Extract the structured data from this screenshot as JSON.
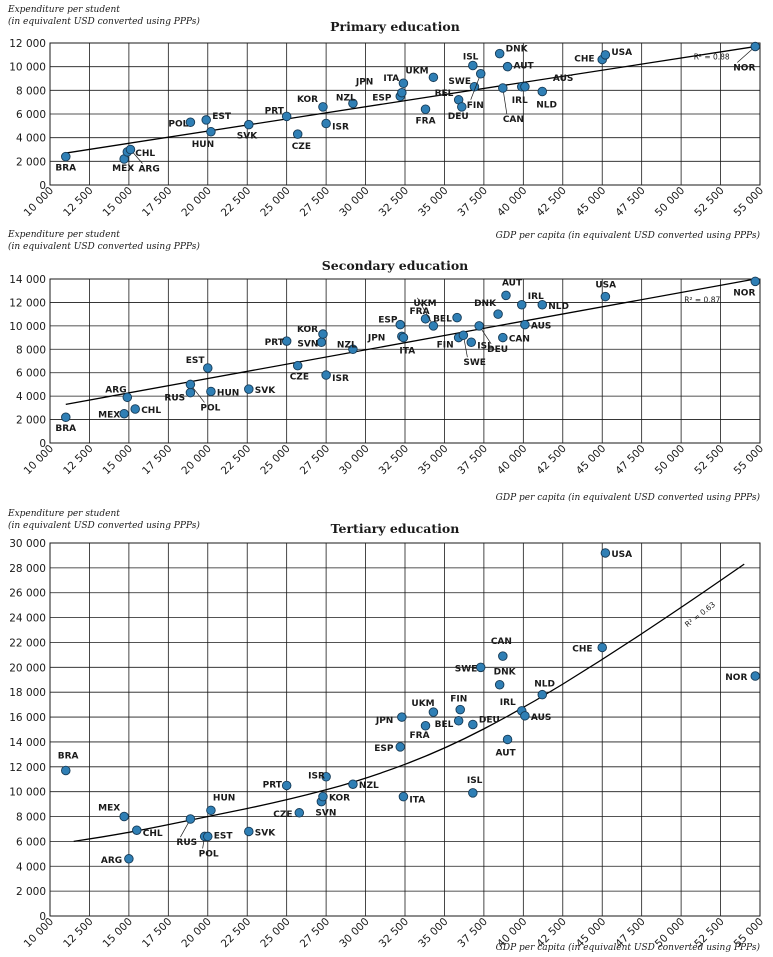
{
  "chart_data": [
    {
      "type": "scatter",
      "title": "Primary education",
      "ylabel_line1": "Expenditure per student",
      "ylabel_line2": "(in equivalent USD converted using PPPs)",
      "xlabel": "GDP per capita (in equivalent USD converted using PPPs)",
      "xlim": [
        10000,
        55000
      ],
      "ylim": [
        0,
        12000
      ],
      "x_ticks": [
        10000,
        12500,
        15000,
        17500,
        20000,
        22500,
        25000,
        27500,
        30000,
        32500,
        35000,
        37500,
        40000,
        42500,
        45000,
        47500,
        50000,
        52500,
        55000
      ],
      "x_tick_labels": [
        "10 000",
        "12 500",
        "15 000",
        "17 500",
        "20 000",
        "22 500",
        "25 000",
        "27 500",
        "30 000",
        "32 500",
        "35 000",
        "37 500",
        "40 000",
        "42 500",
        "45 000",
        "47 500",
        "50 000",
        "52 500",
        "55 000"
      ],
      "y_ticks": [
        0,
        2000,
        4000,
        6000,
        8000,
        10000,
        12000
      ],
      "y_tick_labels": [
        "0",
        "2 000",
        "4 000",
        "6 000",
        "8 000",
        "10 000",
        "12 000"
      ],
      "grid": true,
      "r2_label": "R² = 0.88",
      "trend": {
        "kind": "linear",
        "x": [
          11000,
          54700
        ],
        "y": [
          2700,
          11700
        ]
      },
      "points": [
        {
          "label": "BRA",
          "x": 11000,
          "y": 2400
        },
        {
          "label": "MEX",
          "x": 14700,
          "y": 2200
        },
        {
          "label": "CHL",
          "x": 14900,
          "y": 2800
        },
        {
          "label": "ARG",
          "x": 15100,
          "y": 3000
        },
        {
          "label": "POL",
          "x": 18900,
          "y": 5300
        },
        {
          "label": "EST",
          "x": 19900,
          "y": 5500
        },
        {
          "label": "HUN",
          "x": 20200,
          "y": 4500
        },
        {
          "label": "SVK",
          "x": 22600,
          "y": 5100
        },
        {
          "label": "PRT",
          "x": 25000,
          "y": 5800
        },
        {
          "label": "CZE",
          "x": 25700,
          "y": 4300
        },
        {
          "label": "KOR",
          "x": 27300,
          "y": 6600
        },
        {
          "label": "ISR",
          "x": 27500,
          "y": 5200
        },
        {
          "label": "NZL",
          "x": 29200,
          "y": 6900
        },
        {
          "label": "ESP",
          "x": 32200,
          "y": 7500
        },
        {
          "label": "JPN",
          "x": 32300,
          "y": 7800
        },
        {
          "label": "ITA",
          "x": 32400,
          "y": 8600
        },
        {
          "label": "FRA",
          "x": 33800,
          "y": 6400
        },
        {
          "label": "UKM",
          "x": 34300,
          "y": 9100
        },
        {
          "label": "BEL",
          "x": 35900,
          "y": 7200
        },
        {
          "label": "DEU",
          "x": 36100,
          "y": 6600
        },
        {
          "label": "ISL",
          "x": 36800,
          "y": 10100
        },
        {
          "label": "SWE",
          "x": 36900,
          "y": 8300
        },
        {
          "label": "FIN",
          "x": 37300,
          "y": 9400
        },
        {
          "label": "DNK",
          "x": 38500,
          "y": 11100
        },
        {
          "label": "CAN",
          "x": 38700,
          "y": 8200
        },
        {
          "label": "AUT",
          "x": 39000,
          "y": 10000
        },
        {
          "label": "IRL",
          "x": 39900,
          "y": 8300
        },
        {
          "label": "AUS",
          "x": 40100,
          "y": 8300
        },
        {
          "label": "NLD",
          "x": 41200,
          "y": 7900
        },
        {
          "label": "CHE",
          "x": 45000,
          "y": 10600
        },
        {
          "label": "USA",
          "x": 45200,
          "y": 11000
        },
        {
          "label": "NOR",
          "x": 54700,
          "y": 11700
        }
      ]
    },
    {
      "type": "scatter",
      "title": "Secondary education",
      "ylabel_line1": "Expenditure per student",
      "ylabel_line2": "(in equivalent USD converted using PPPs)",
      "xlabel": "GDP per capita (in equivalent USD converted using PPPs)",
      "xlim": [
        10000,
        55000
      ],
      "ylim": [
        0,
        14000
      ],
      "x_ticks": [
        10000,
        12500,
        15000,
        17500,
        20000,
        22500,
        25000,
        27500,
        30000,
        32500,
        35000,
        37500,
        40000,
        42500,
        45000,
        47500,
        50000,
        52500,
        55000
      ],
      "x_tick_labels": [
        "10 000",
        "12 500",
        "15 000",
        "17 500",
        "20 000",
        "22 500",
        "25 000",
        "27 500",
        "30 000",
        "32 500",
        "35 000",
        "37 500",
        "40 000",
        "42 500",
        "45 000",
        "47 500",
        "50 000",
        "52 500",
        "55 000"
      ],
      "y_ticks": [
        0,
        2000,
        4000,
        6000,
        8000,
        10000,
        12000,
        14000
      ],
      "y_tick_labels": [
        "0",
        "2 000",
        "4 000",
        "6 000",
        "8 000",
        "10 000",
        "12 000",
        "14 000"
      ],
      "grid": true,
      "r2_label": "R² = 0.87",
      "trend": {
        "kind": "linear",
        "x": [
          11000,
          54700
        ],
        "y": [
          3300,
          14000
        ]
      },
      "points": [
        {
          "label": "BRA",
          "x": 11000,
          "y": 2200
        },
        {
          "label": "MEX",
          "x": 14700,
          "y": 2500
        },
        {
          "label": "ARG",
          "x": 14900,
          "y": 3900
        },
        {
          "label": "CHL",
          "x": 15400,
          "y": 2900
        },
        {
          "label": "RUS",
          "x": 18900,
          "y": 4300
        },
        {
          "label": "POL",
          "x": 18900,
          "y": 5000
        },
        {
          "label": "EST",
          "x": 20000,
          "y": 6400
        },
        {
          "label": "HUN",
          "x": 20200,
          "y": 4400
        },
        {
          "label": "SVK",
          "x": 22600,
          "y": 4600
        },
        {
          "label": "PRT",
          "x": 25000,
          "y": 8700
        },
        {
          "label": "CZE",
          "x": 25700,
          "y": 6600
        },
        {
          "label": "SVN",
          "x": 27200,
          "y": 8600
        },
        {
          "label": "KOR",
          "x": 27300,
          "y": 9300
        },
        {
          "label": "ISR",
          "x": 27500,
          "y": 5800
        },
        {
          "label": "NZL",
          "x": 29200,
          "y": 8000
        },
        {
          "label": "JPN",
          "x": 32300,
          "y": 9100
        },
        {
          "label": "ESP",
          "x": 32200,
          "y": 10100
        },
        {
          "label": "ITA",
          "x": 32400,
          "y": 9000
        },
        {
          "label": "FRA",
          "x": 33800,
          "y": 10600
        },
        {
          "label": "UKM",
          "x": 34300,
          "y": 10000
        },
        {
          "label": "BEL",
          "x": 35800,
          "y": 10700
        },
        {
          "label": "FIN",
          "x": 35900,
          "y": 9000
        },
        {
          "label": "SWE",
          "x": 36200,
          "y": 9200
        },
        {
          "label": "ISL",
          "x": 36700,
          "y": 8600
        },
        {
          "label": "DEU",
          "x": 37200,
          "y": 10000
        },
        {
          "label": "DNK",
          "x": 38400,
          "y": 11000
        },
        {
          "label": "CAN",
          "x": 38700,
          "y": 9000
        },
        {
          "label": "AUT",
          "x": 38900,
          "y": 12600
        },
        {
          "label": "IRL",
          "x": 39900,
          "y": 11800
        },
        {
          "label": "AUS",
          "x": 40100,
          "y": 10100
        },
        {
          "label": "NLD",
          "x": 41200,
          "y": 11800
        },
        {
          "label": "USA",
          "x": 45200,
          "y": 12500
        },
        {
          "label": "NOR",
          "x": 54700,
          "y": 13800
        }
      ]
    },
    {
      "type": "scatter",
      "title": "Tertiary education",
      "ylabel_line1": "Expenditure per student",
      "ylabel_line2": "(in equivalent USD converted using PPPs)",
      "xlabel": "GDP per capita (in equivalent USD converted using PPPs)",
      "xlim": [
        10000,
        55000
      ],
      "ylim": [
        0,
        30000
      ],
      "x_ticks": [
        10000,
        12500,
        15000,
        17500,
        20000,
        22500,
        25000,
        27500,
        30000,
        32500,
        35000,
        37500,
        40000,
        42500,
        45000,
        47500,
        50000,
        52500,
        55000
      ],
      "x_tick_labels": [
        "10 000",
        "12 500",
        "15 000",
        "17 500",
        "20 000",
        "22 500",
        "25 000",
        "27 500",
        "30 000",
        "32 500",
        "35 000",
        "37 500",
        "40 000",
        "42 500",
        "45 000",
        "47 500",
        "50 000",
        "52 500",
        "55 000"
      ],
      "y_ticks": [
        0,
        2000,
        4000,
        6000,
        8000,
        10000,
        12000,
        14000,
        16000,
        18000,
        20000,
        22000,
        24000,
        26000,
        28000,
        30000
      ],
      "y_tick_labels": [
        "0",
        "2 000",
        "4 000",
        "6 000",
        "8 000",
        "10 000",
        "12 000",
        "14 000",
        "16 000",
        "18 000",
        "20 000",
        "22 000",
        "24 000",
        "26 000",
        "28 000",
        "30 000"
      ],
      "grid": true,
      "r2_label": "R² = 0.63",
      "trend": {
        "kind": "curve",
        "x": [
          11500,
          15000,
          20000,
          25000,
          30000,
          35000,
          40000,
          45000,
          50000,
          54000
        ],
        "y": [
          6000,
          6700,
          8000,
          9300,
          11000,
          13400,
          16700,
          20600,
          24800,
          28300
        ]
      },
      "points": [
        {
          "label": "BRA",
          "x": 11000,
          "y": 11700
        },
        {
          "label": "MEX",
          "x": 14700,
          "y": 8000
        },
        {
          "label": "ARG",
          "x": 15000,
          "y": 4600
        },
        {
          "label": "CHL",
          "x": 15500,
          "y": 6900
        },
        {
          "label": "RUS",
          "x": 18900,
          "y": 7800
        },
        {
          "label": "POL",
          "x": 19800,
          "y": 6400
        },
        {
          "label": "EST",
          "x": 20000,
          "y": 6400
        },
        {
          "label": "HUN",
          "x": 20200,
          "y": 8500
        },
        {
          "label": "SVK",
          "x": 22600,
          "y": 6800
        },
        {
          "label": "PRT",
          "x": 25000,
          "y": 10500
        },
        {
          "label": "CZE",
          "x": 25800,
          "y": 8300
        },
        {
          "label": "SVN",
          "x": 27200,
          "y": 9200
        },
        {
          "label": "KOR",
          "x": 27300,
          "y": 9600
        },
        {
          "label": "ISR",
          "x": 27500,
          "y": 11200
        },
        {
          "label": "NZL",
          "x": 29200,
          "y": 10600
        },
        {
          "label": "ESP",
          "x": 32200,
          "y": 13600
        },
        {
          "label": "JPN",
          "x": 32300,
          "y": 16000
        },
        {
          "label": "ITA",
          "x": 32400,
          "y": 9600
        },
        {
          "label": "FRA",
          "x": 33800,
          "y": 15300
        },
        {
          "label": "UKM",
          "x": 34300,
          "y": 16400
        },
        {
          "label": "BEL",
          "x": 35900,
          "y": 15700
        },
        {
          "label": "FIN",
          "x": 36000,
          "y": 16600
        },
        {
          "label": "DEU",
          "x": 36800,
          "y": 15400
        },
        {
          "label": "ISL",
          "x": 36800,
          "y": 9900
        },
        {
          "label": "SWE",
          "x": 37300,
          "y": 20000
        },
        {
          "label": "DNK",
          "x": 38500,
          "y": 18600
        },
        {
          "label": "CAN",
          "x": 38700,
          "y": 20900
        },
        {
          "label": "AUT",
          "x": 39000,
          "y": 14200
        },
        {
          "label": "IRL",
          "x": 39900,
          "y": 16500
        },
        {
          "label": "AUS",
          "x": 40100,
          "y": 16100
        },
        {
          "label": "NLD",
          "x": 41200,
          "y": 17800
        },
        {
          "label": "CHE",
          "x": 45000,
          "y": 21600
        },
        {
          "label": "USA",
          "x": 45200,
          "y": 29200
        },
        {
          "label": "NOR",
          "x": 54700,
          "y": 19300
        }
      ]
    }
  ]
}
